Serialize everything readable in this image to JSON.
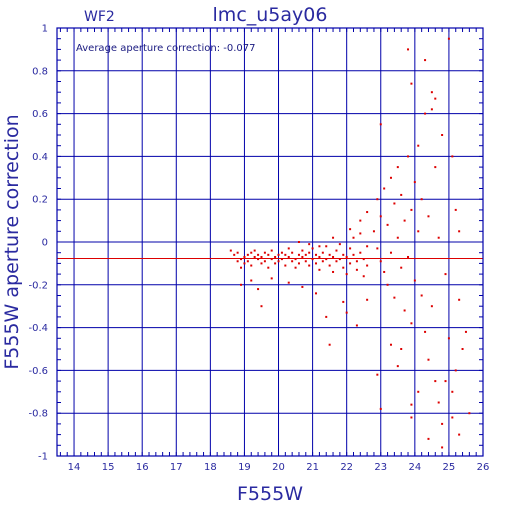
{
  "chart_data": {
    "type": "scatter",
    "title": "lmc_u5ay06",
    "corner_label": "WF2",
    "xlabel": "F555W",
    "ylabel": "F555W aperture correction",
    "xlim": [
      13.5,
      26
    ],
    "ylim": [
      -1,
      1
    ],
    "x_ticks": [
      14,
      15,
      16,
      17,
      18,
      19,
      20,
      21,
      22,
      23,
      24,
      25,
      26
    ],
    "x_tick_labels": [
      "14",
      "15",
      "16",
      "17",
      "18",
      "19",
      "20",
      "21",
      "22",
      "23",
      "24",
      "25",
      "26"
    ],
    "y_ticks": [
      -1,
      -0.8,
      -0.6,
      -0.4,
      -0.2,
      0,
      0.2,
      0.4,
      0.6,
      0.8,
      1
    ],
    "y_tick_labels": [
      "-1",
      "-0.8",
      "-0.6",
      "-0.4",
      "-0.2",
      "0",
      "0.2",
      "0.4",
      "0.6",
      "0.8",
      "1"
    ],
    "grid": true,
    "annotation": "Average aperture correction: -0.077",
    "average_line": -0.077,
    "colors": {
      "axes": "#0000aa",
      "points": "#dd0000",
      "avg_line": "#dd0000",
      "text": "#2a2aa0"
    },
    "series": [
      {
        "points": [
          [
            18.6,
            -0.04
          ],
          [
            18.7,
            -0.06
          ],
          [
            18.8,
            -0.09
          ],
          [
            18.8,
            -0.05
          ],
          [
            18.9,
            -0.08
          ],
          [
            18.9,
            -0.12
          ],
          [
            19.0,
            -0.07
          ],
          [
            19.0,
            -0.1
          ],
          [
            19.1,
            -0.06
          ],
          [
            19.1,
            -0.09
          ],
          [
            19.2,
            -0.05
          ],
          [
            19.2,
            -0.11
          ],
          [
            19.3,
            -0.07
          ],
          [
            19.3,
            -0.04
          ],
          [
            19.4,
            -0.08
          ],
          [
            19.4,
            -0.06
          ],
          [
            19.5,
            -0.1
          ],
          [
            19.5,
            -0.07
          ],
          [
            19.6,
            -0.05
          ],
          [
            19.6,
            -0.09
          ],
          [
            19.7,
            -0.06
          ],
          [
            19.7,
            -0.12
          ],
          [
            19.8,
            -0.08
          ],
          [
            19.8,
            -0.04
          ],
          [
            19.9,
            -0.07
          ],
          [
            19.9,
            -0.1
          ],
          [
            20.0,
            -0.06
          ],
          [
            20.0,
            -0.09
          ],
          [
            20.1,
            -0.05
          ],
          [
            20.1,
            -0.08
          ],
          [
            20.2,
            -0.11
          ],
          [
            20.2,
            -0.06
          ],
          [
            20.3,
            -0.07
          ],
          [
            20.3,
            -0.03
          ],
          [
            20.4,
            -0.09
          ],
          [
            20.4,
            -0.05
          ],
          [
            20.5,
            -0.08
          ],
          [
            20.5,
            -0.12
          ],
          [
            20.6,
            -0.06
          ],
          [
            20.6,
            -0.1
          ],
          [
            20.7,
            -0.07
          ],
          [
            20.7,
            -0.04
          ],
          [
            20.8,
            -0.09
          ],
          [
            20.8,
            -0.06
          ],
          [
            20.9,
            -0.11
          ],
          [
            20.9,
            -0.05
          ],
          [
            21.0,
            -0.08
          ],
          [
            21.0,
            -0.03
          ],
          [
            21.1,
            -0.1
          ],
          [
            21.1,
            -0.06
          ],
          [
            21.2,
            -0.07
          ],
          [
            21.2,
            -0.13
          ],
          [
            21.3,
            -0.05
          ],
          [
            21.3,
            -0.09
          ],
          [
            21.4,
            -0.08
          ],
          [
            21.4,
            -0.02
          ],
          [
            21.5,
            -0.11
          ],
          [
            21.5,
            -0.06
          ],
          [
            21.6,
            -0.07
          ],
          [
            21.6,
            -0.14
          ],
          [
            21.7,
            -0.04
          ],
          [
            21.7,
            -0.09
          ],
          [
            21.8,
            -0.08
          ],
          [
            21.8,
            -0.01
          ],
          [
            21.9,
            -0.12
          ],
          [
            21.9,
            -0.06
          ],
          [
            22.0,
            -0.07
          ],
          [
            22.0,
            -0.15
          ],
          [
            22.1,
            -0.03
          ],
          [
            22.1,
            -0.1
          ],
          [
            22.2,
            -0.06
          ],
          [
            22.2,
            0.02
          ],
          [
            22.3,
            -0.09
          ],
          [
            22.3,
            -0.13
          ],
          [
            22.4,
            -0.05
          ],
          [
            22.4,
            0.04
          ],
          [
            22.5,
            -0.08
          ],
          [
            22.5,
            -0.16
          ],
          [
            22.6,
            -0.02
          ],
          [
            22.6,
            -0.11
          ],
          [
            18.9,
            -0.2
          ],
          [
            19.2,
            -0.18
          ],
          [
            19.4,
            -0.22
          ],
          [
            19.8,
            -0.17
          ],
          [
            20.3,
            -0.19
          ],
          [
            19.5,
            -0.3
          ],
          [
            20.7,
            -0.21
          ],
          [
            21.1,
            -0.24
          ],
          [
            21.4,
            -0.35
          ],
          [
            21.5,
            -0.48
          ],
          [
            21.9,
            -0.28
          ],
          [
            22.0,
            -0.33
          ],
          [
            22.3,
            -0.39
          ],
          [
            22.6,
            -0.27
          ],
          [
            21.2,
            -0.02
          ],
          [
            20.6,
            0.0
          ],
          [
            20.9,
            -0.01
          ],
          [
            21.6,
            0.02
          ],
          [
            22.1,
            0.06
          ],
          [
            22.4,
            0.1
          ],
          [
            22.6,
            0.14
          ],
          [
            22.8,
            0.05
          ],
          [
            22.9,
            -0.03
          ],
          [
            22.9,
            0.2
          ],
          [
            23.0,
            -0.09
          ],
          [
            23.0,
            0.12
          ],
          [
            23.1,
            -0.14
          ],
          [
            23.1,
            0.25
          ],
          [
            23.2,
            0.08
          ],
          [
            23.2,
            -0.2
          ],
          [
            23.3,
            0.3
          ],
          [
            23.3,
            -0.05
          ],
          [
            23.4,
            0.18
          ],
          [
            23.4,
            -0.26
          ],
          [
            23.5,
            0.02
          ],
          [
            23.5,
            0.35
          ],
          [
            23.6,
            -0.12
          ],
          [
            23.6,
            0.22
          ],
          [
            23.7,
            -0.32
          ],
          [
            23.7,
            0.1
          ],
          [
            23.8,
            0.4
          ],
          [
            23.8,
            -0.07
          ],
          [
            23.9,
            0.15
          ],
          [
            23.9,
            -0.38
          ],
          [
            24.0,
            0.28
          ],
          [
            24.0,
            -0.18
          ],
          [
            24.1,
            0.05
          ],
          [
            24.1,
            0.45
          ],
          [
            24.2,
            -0.25
          ],
          [
            24.2,
            0.2
          ],
          [
            24.3,
            -0.42
          ],
          [
            24.3,
            0.6
          ],
          [
            24.4,
            0.12
          ],
          [
            24.4,
            -0.55
          ],
          [
            24.5,
            0.7
          ],
          [
            24.5,
            -0.3
          ],
          [
            24.6,
            0.35
          ],
          [
            24.6,
            -0.65
          ],
          [
            24.7,
            0.02
          ],
          [
            24.7,
            -0.75
          ],
          [
            24.8,
            0.5
          ],
          [
            24.8,
            -0.85
          ],
          [
            24.9,
            -0.15
          ],
          [
            25.0,
            0.95
          ],
          [
            25.0,
            -0.45
          ],
          [
            25.1,
            0.4
          ],
          [
            25.1,
            -0.7
          ],
          [
            25.2,
            0.15
          ],
          [
            25.2,
            -0.6
          ],
          [
            25.3,
            -0.9
          ],
          [
            25.4,
            -0.5
          ],
          [
            25.5,
            -0.42
          ],
          [
            25.6,
            -0.8
          ],
          [
            25.3,
            0.05
          ],
          [
            23.0,
            0.55
          ],
          [
            23.8,
            0.9
          ],
          [
            24.3,
            0.85
          ],
          [
            24.5,
            0.62
          ],
          [
            23.9,
            0.74
          ],
          [
            24.6,
            0.67
          ],
          [
            23.9,
            -0.76
          ],
          [
            23.9,
            -0.82
          ],
          [
            24.1,
            -0.7
          ],
          [
            24.4,
            -0.92
          ],
          [
            24.8,
            -0.96
          ],
          [
            22.9,
            -0.62
          ],
          [
            23.0,
            -0.78
          ],
          [
            23.5,
            -0.58
          ],
          [
            23.3,
            -0.48
          ],
          [
            23.6,
            -0.5
          ],
          [
            25.3,
            -0.27
          ],
          [
            24.9,
            -0.65
          ],
          [
            25.1,
            -0.82
          ]
        ]
      }
    ]
  }
}
